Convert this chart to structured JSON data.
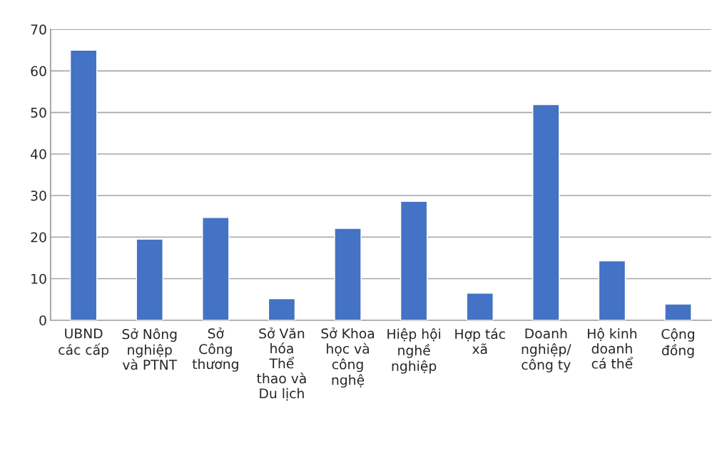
{
  "chart_data": {
    "type": "bar",
    "categories": [
      "UBND\ncác cấp",
      "Sở Nông\nnghiệp\nvà PTNT",
      "Sở\nCông\nthương",
      "Sở Văn\nhóa\nThể\nthao và\nDu lịch",
      "Sở Khoa\nhọc và\ncông\nnghệ",
      "Hiệp hội\nnghề\nnghiệp",
      "Hợp tác\nxã",
      "Doanh\nnghiệp/\ncông ty",
      "Hộ kinh\ndoanh\ncá thể",
      "Cộng\nđồng"
    ],
    "values": [
      65,
      19.5,
      24.7,
      5.2,
      22.1,
      28.6,
      6.5,
      51.9,
      14.3,
      3.9
    ],
    "color": "#4472c4",
    "ylim": [
      0,
      70
    ],
    "yticks": [
      0,
      10,
      20,
      30,
      40,
      50,
      60,
      70
    ],
    "grid": "y"
  }
}
